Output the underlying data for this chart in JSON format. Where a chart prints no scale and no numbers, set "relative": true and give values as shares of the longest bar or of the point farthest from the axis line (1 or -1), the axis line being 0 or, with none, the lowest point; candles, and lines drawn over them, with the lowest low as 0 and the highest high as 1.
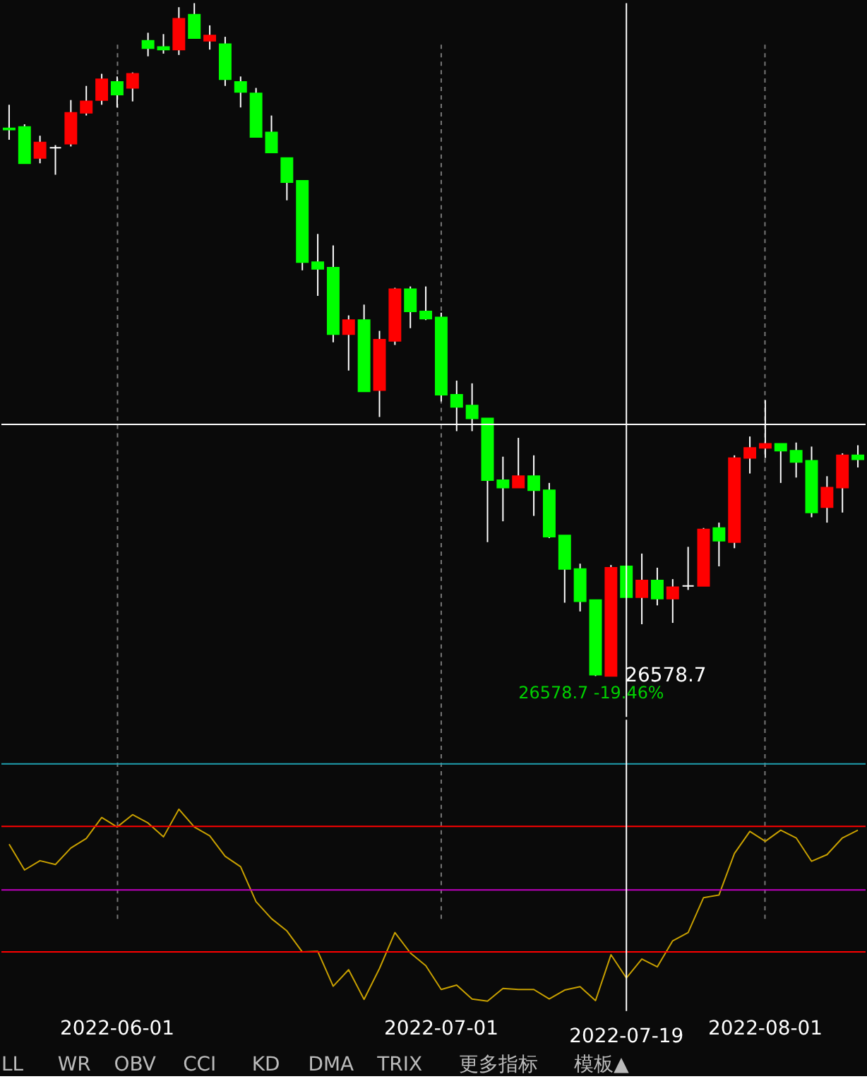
{
  "chart_data": [
    {
      "type": "candlestick",
      "relative": true,
      "tick_labels": false,
      "grid": "x",
      "categories": [
        null,
        null,
        null,
        null,
        null,
        null,
        null,
        "2022-06-01",
        null,
        null,
        null,
        null,
        null,
        null,
        null,
        null,
        null,
        null,
        null,
        null,
        null,
        null,
        null,
        null,
        null,
        null,
        null,
        null,
        "2022-07-01",
        null,
        null,
        null,
        null,
        null,
        null,
        null,
        null,
        null,
        null,
        null,
        "2022-07-19",
        null,
        null,
        null,
        null,
        null,
        null,
        null,
        null,
        "2022-08-01",
        null,
        null,
        null,
        null,
        null,
        null
      ],
      "ohlc": [
        [
          0.814,
          0.849,
          0.797,
          0.812
        ],
        [
          0.816,
          0.82,
          0.762,
          0.762
        ],
        [
          0.77,
          0.803,
          0.762,
          0.793
        ],
        [
          0.785,
          0.789,
          0.745,
          0.785
        ],
        [
          0.791,
          0.856,
          0.787,
          0.837
        ],
        [
          0.837,
          0.877,
          0.833,
          0.854
        ],
        [
          0.856,
          0.895,
          0.849,
          0.887
        ],
        [
          0.883,
          0.891,
          0.845,
          0.864
        ],
        [
          0.874,
          0.897,
          0.854,
          0.895
        ],
        [
          0.944,
          0.956,
          0.921,
          0.933
        ],
        [
          0.935,
          0.954,
          0.925,
          0.931
        ],
        [
          0.931,
          0.994,
          0.923,
          0.977
        ],
        [
          0.983,
          1,
          0.948,
          0.948
        ],
        [
          0.944,
          0.967,
          0.931,
          0.952
        ],
        [
          0.939,
          0.95,
          0.877,
          0.887
        ],
        [
          0.883,
          0.891,
          0.845,
          0.868
        ],
        [
          0.866,
          0.874,
          0.801,
          0.801
        ],
        [
          0.808,
          0.833,
          0.778,
          0.778
        ],
        [
          0.77,
          0.77,
          0.707,
          0.734
        ],
        [
          0.736,
          0.736,
          0.603,
          0.615
        ],
        [
          0.615,
          0.657,
          0.565,
          0.605
        ],
        [
          0.607,
          0.64,
          0.496,
          0.508
        ],
        [
          0.508,
          0.536,
          0.454,
          0.529
        ],
        [
          0.529,
          0.552,
          0.423,
          0.423
        ],
        [
          0.425,
          0.513,
          0.385,
          0.5
        ],
        [
          0.498,
          0.577,
          0.492,
          0.575
        ],
        [
          0.575,
          0.579,
          0.517,
          0.542
        ],
        [
          0.542,
          0.579,
          0.529,
          0.531
        ],
        [
          0.533,
          0.54,
          0.408,
          0.418
        ],
        [
          0.418,
          0.439,
          0.364,
          0.4
        ],
        [
          0.402,
          0.435,
          0.364,
          0.383
        ],
        [
          0.383,
          0.383,
          0.199,
          0.291
        ],
        [
          0.291,
          0.326,
          0.23,
          0.28
        ],
        [
          0.28,
          0.354,
          0.28,
          0.297
        ],
        [
          0.297,
          0.328,
          0.238,
          0.276
        ],
        [
          0.276,
          0.287,
          0.205,
          0.207
        ],
        [
          0.209,
          0.209,
          0.109,
          0.159
        ],
        [
          0.159,
          0.167,
          0.096,
          0.111
        ],
        [
          0.113,
          0.113,
          0,
          0.002
        ],
        [
          0,
          0.165,
          0,
          0.161
        ],
        [
          0.163,
          0.163,
          0.117,
          0.117
        ],
        [
          0.117,
          0.182,
          0.077,
          0.142
        ],
        [
          0.142,
          0.161,
          0.105,
          0.115
        ],
        [
          0.115,
          0.144,
          0.079,
          0.132
        ],
        [
          0.134,
          0.192,
          0.128,
          0.134
        ],
        [
          0.134,
          0.22,
          0.134,
          0.218
        ],
        [
          0.22,
          0.228,
          0.163,
          0.201
        ],
        [
          0.199,
          0.328,
          0.19,
          0.324
        ],
        [
          0.324,
          0.356,
          0.301,
          0.339
        ],
        [
          0.339,
          0.41,
          0.324,
          0.345
        ],
        [
          0.345,
          0.345,
          0.287,
          0.335
        ],
        [
          0.335,
          0.347,
          0.295,
          0.318
        ],
        [
          0.32,
          0.341,
          0.236,
          0.243
        ],
        [
          0.251,
          0.297,
          0.228,
          0.28
        ],
        [
          0.28,
          0.331,
          0.243,
          0.328
        ],
        [
          0.328,
          0.343,
          0.31,
          0.322
        ]
      ],
      "colors": [
        "#00ff00",
        "#00ff00",
        "#ff0000",
        "#ffffff",
        "#ff0000",
        "#ff0000",
        "#ff0000",
        "#00ff00",
        "#ff0000",
        "#00ff00",
        "#00ff00",
        "#ff0000",
        "#00ff00",
        "#ff0000",
        "#00ff00",
        "#00ff00",
        "#00ff00",
        "#00ff00",
        "#00ff00",
        "#00ff00",
        "#00ff00",
        "#00ff00",
        "#ff0000",
        "#00ff00",
        "#ff0000",
        "#ff0000",
        "#00ff00",
        "#00ff00",
        "#00ff00",
        "#00ff00",
        "#00ff00",
        "#00ff00",
        "#00ff00",
        "#ff0000",
        "#00ff00",
        "#00ff00",
        "#00ff00",
        "#00ff00",
        "#00ff00",
        "#ff0000",
        "#00ff00",
        "#ff0000",
        "#00ff00",
        "#ff0000",
        "#ffffff",
        "#ff0000",
        "#00ff00",
        "#ff0000",
        "#ff0000",
        "#ff0000",
        "#00ff00",
        "#00ff00",
        "#00ff00",
        "#ff0000",
        "#ff0000",
        "#00ff00"
      ],
      "ref_lines": [
        {
          "axis": "x",
          "value": "2022-07-19",
          "color": "#ffffff"
        },
        {
          "axis": "y",
          "value": 0.374,
          "color": "#ffffff"
        }
      ],
      "annotations": [
        "26578.7",
        "26578.7 -19.46%"
      ]
    },
    {
      "type": "line",
      "relative": true,
      "tick_labels": "x",
      "grid": "x",
      "categories": [
        null,
        null,
        null,
        null,
        null,
        null,
        null,
        "2022-06-01",
        null,
        null,
        null,
        null,
        null,
        null,
        null,
        null,
        null,
        null,
        null,
        null,
        null,
        null,
        null,
        null,
        null,
        null,
        null,
        null,
        "2022-07-01",
        null,
        null,
        null,
        null,
        null,
        null,
        null,
        null,
        null,
        null,
        null,
        "2022-07-19",
        null,
        null,
        null,
        null,
        null,
        null,
        null,
        null,
        "2022-08-01",
        null,
        null,
        null,
        null,
        null,
        null
      ],
      "values": [
        0.827,
        0.699,
        0.745,
        0.726,
        0.808,
        0.855,
        0.959,
        0.912,
        0.973,
        0.932,
        0.863,
        1,
        0.912,
        0.868,
        0.767,
        0.715,
        0.542,
        0.458,
        0.397,
        0.293,
        0.296,
        0.123,
        0.205,
        0.058,
        0.211,
        0.389,
        0.288,
        0.225,
        0.107,
        0.129,
        0.06,
        0.049,
        0.112,
        0.107,
        0.107,
        0.06,
        0.104,
        0.121,
        0.052,
        0.279,
        0.164,
        0.258,
        0.219,
        0.348,
        0.389,
        0.562,
        0.575,
        0.781,
        0.89,
        0.841,
        0.896,
        0.858,
        0.742,
        0.775,
        0.858,
        0.896
      ],
      "color": "#c8a000",
      "ref_lines": [
        {
          "axis": "y",
          "value": 1.225,
          "color": "#1fa0b0"
        },
        {
          "axis": "y",
          "value": 0.915,
          "color": "#ff0000"
        },
        {
          "axis": "y",
          "value": 0.6,
          "color": "#c000c0"
        },
        {
          "axis": "y",
          "value": 0.293,
          "color": "#ff0000"
        },
        {
          "axis": "x",
          "value": "2022-07-19",
          "color": "#ffffff"
        }
      ],
      "annotations": [
        "LL",
        "WR",
        "OBV",
        "CCI",
        "KD",
        "DMA",
        "TRIX",
        "更多指标",
        "模板▲"
      ]
    }
  ]
}
